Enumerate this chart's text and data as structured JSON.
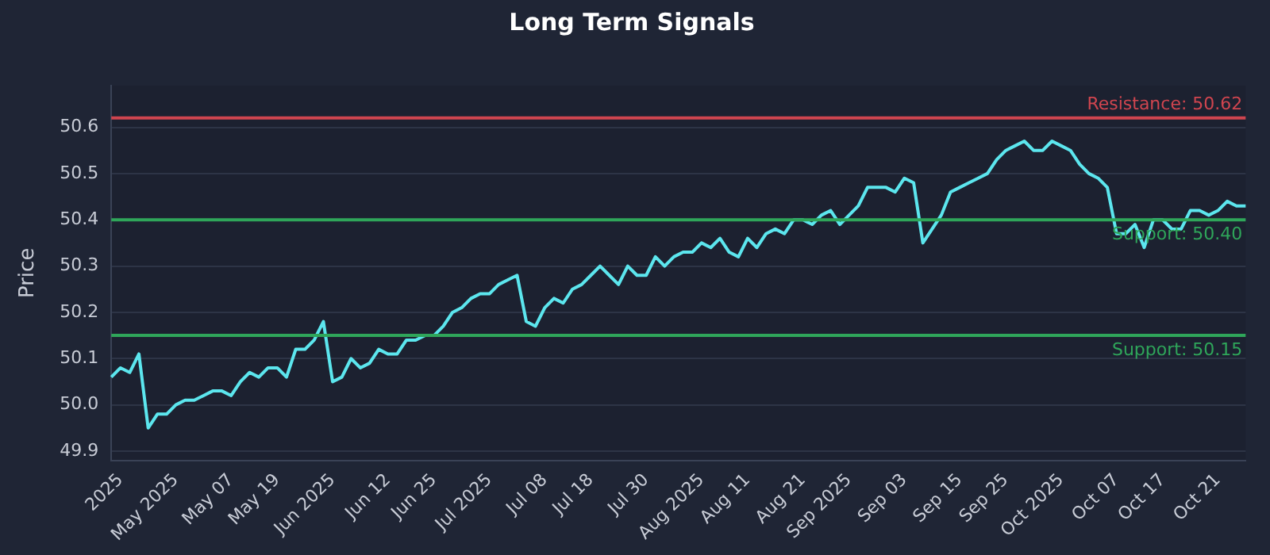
{
  "chart_data": {
    "type": "line",
    "title": "Long Term Signals",
    "ylabel": "Price",
    "categories": [
      null,
      "2025",
      null,
      null,
      null,
      null,
      null,
      "May 2025",
      null,
      null,
      null,
      null,
      null,
      "May 07",
      null,
      null,
      null,
      null,
      "May 19",
      null,
      null,
      null,
      null,
      null,
      "Jun 2025",
      null,
      null,
      null,
      null,
      null,
      "Jun 12",
      null,
      null,
      null,
      null,
      "Jun 25",
      null,
      null,
      null,
      null,
      null,
      "Jul 2025",
      null,
      null,
      null,
      null,
      null,
      "Jul 08",
      null,
      null,
      null,
      null,
      "Jul 18",
      null,
      null,
      null,
      null,
      null,
      "Jul 30",
      null,
      null,
      null,
      null,
      null,
      "Aug 2025",
      null,
      null,
      null,
      null,
      "Aug 11",
      null,
      null,
      null,
      null,
      null,
      "Aug 21",
      null,
      null,
      null,
      null,
      "Sep 2025",
      null,
      null,
      null,
      null,
      null,
      "Sep 03",
      null,
      null,
      null,
      null,
      null,
      "Sep 15",
      null,
      null,
      null,
      null,
      "Sep 25",
      null,
      null,
      null,
      null,
      null,
      "Oct 2025",
      null,
      null,
      null,
      null,
      null,
      "Oct 07",
      null,
      null,
      null,
      null,
      "Oct 17",
      null,
      null,
      null,
      null,
      null,
      "Oct 21",
      null,
      null,
      null
    ],
    "series": [
      {
        "color": "#5ce6ee",
        "values": [
          50.06,
          50.08,
          50.07,
          50.11,
          49.95,
          49.98,
          49.98,
          50.0,
          50.01,
          50.01,
          50.02,
          50.03,
          50.03,
          50.02,
          50.05,
          50.07,
          50.06,
          50.08,
          50.08,
          50.06,
          50.12,
          50.12,
          50.14,
          50.18,
          50.05,
          50.06,
          50.1,
          50.08,
          50.09,
          50.12,
          50.11,
          50.11,
          50.14,
          50.14,
          50.15,
          50.15,
          50.17,
          50.2,
          50.21,
          50.23,
          50.24,
          50.24,
          50.26,
          50.27,
          50.28,
          50.18,
          50.17,
          50.21,
          50.23,
          50.22,
          50.25,
          50.26,
          50.28,
          50.3,
          50.28,
          50.26,
          50.3,
          50.28,
          50.28,
          50.32,
          50.3,
          50.32,
          50.33,
          50.33,
          50.35,
          50.34,
          50.36,
          50.33,
          50.32,
          50.36,
          50.34,
          50.37,
          50.38,
          50.37,
          50.4,
          50.4,
          50.39,
          50.41,
          50.42,
          50.39,
          50.41,
          50.43,
          50.47,
          50.47,
          50.47,
          50.46,
          50.49,
          50.48,
          50.35,
          50.38,
          50.41,
          50.46,
          50.47,
          50.48,
          50.49,
          50.5,
          50.53,
          50.55,
          50.56,
          50.57,
          50.55,
          50.55,
          50.57,
          50.56,
          50.55,
          50.52,
          50.5,
          50.49,
          50.47,
          50.37,
          50.37,
          50.39,
          50.34,
          50.4,
          50.4,
          50.38,
          50.38,
          50.42,
          50.42,
          50.41,
          50.42,
          50.44,
          50.43,
          50.43
        ]
      }
    ],
    "ylim": [
      49.88,
      50.69
    ],
    "yticks": [
      49.9,
      {
        "value": 50,
        "label": "50.0"
      },
      50.1,
      50.2,
      50.3,
      50.4,
      50.5,
      50.6
    ],
    "grid": "y",
    "legend": false,
    "marker": "none",
    "line_style": "solid",
    "ref_lines": [
      {
        "axis": "y",
        "value": 50.62,
        "label": "Resistance: 50.62",
        "color": "#d0454f"
      },
      {
        "axis": "y",
        "value": 50.4,
        "label": "Support: 50.40",
        "color": "#2fa65a"
      },
      {
        "axis": "y",
        "value": 50.15,
        "label": "Support: 50.15",
        "color": "#2fa65a"
      }
    ]
  }
}
